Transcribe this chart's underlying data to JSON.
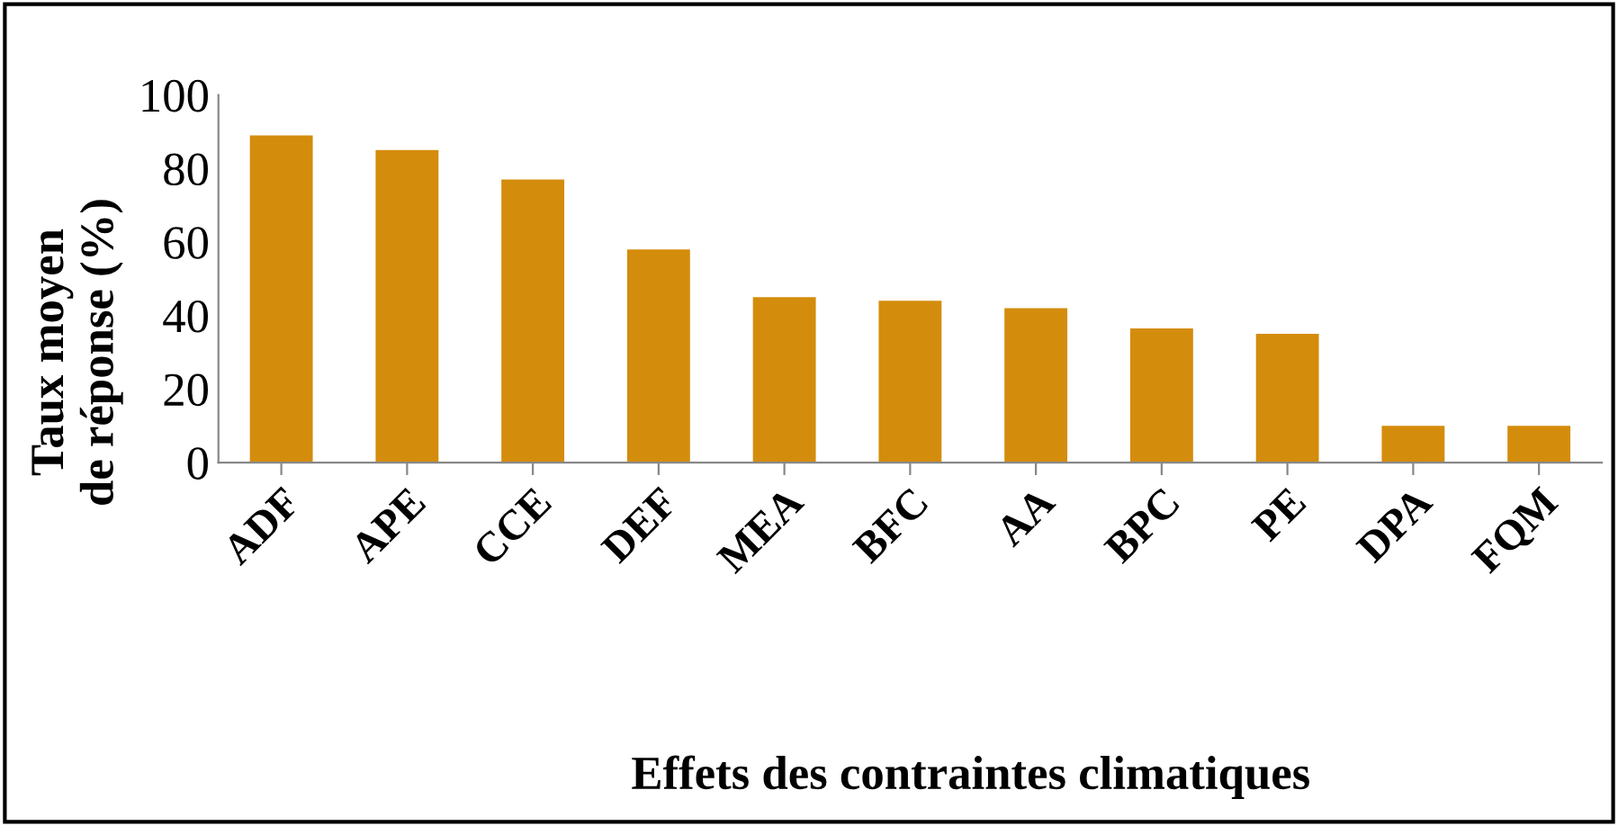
{
  "chart_data": {
    "type": "bar",
    "xlabel": "Effets des contraintes climatiques",
    "ylabel": "Taux moyen\nde réponse (%)",
    "categories": [
      "ADF",
      "APE",
      "CCE",
      "DEF",
      "MEA",
      "BFC",
      "AA",
      "BPC",
      "PE",
      "DPA",
      "FQM"
    ],
    "values": [
      89,
      85,
      77,
      58,
      45,
      44,
      42,
      36.5,
      35,
      10,
      10
    ],
    "color": "#d48c0c",
    "ylim": [
      0,
      100
    ],
    "yticks": [
      0,
      20,
      40,
      60,
      80,
      100
    ],
    "grid": false
  }
}
